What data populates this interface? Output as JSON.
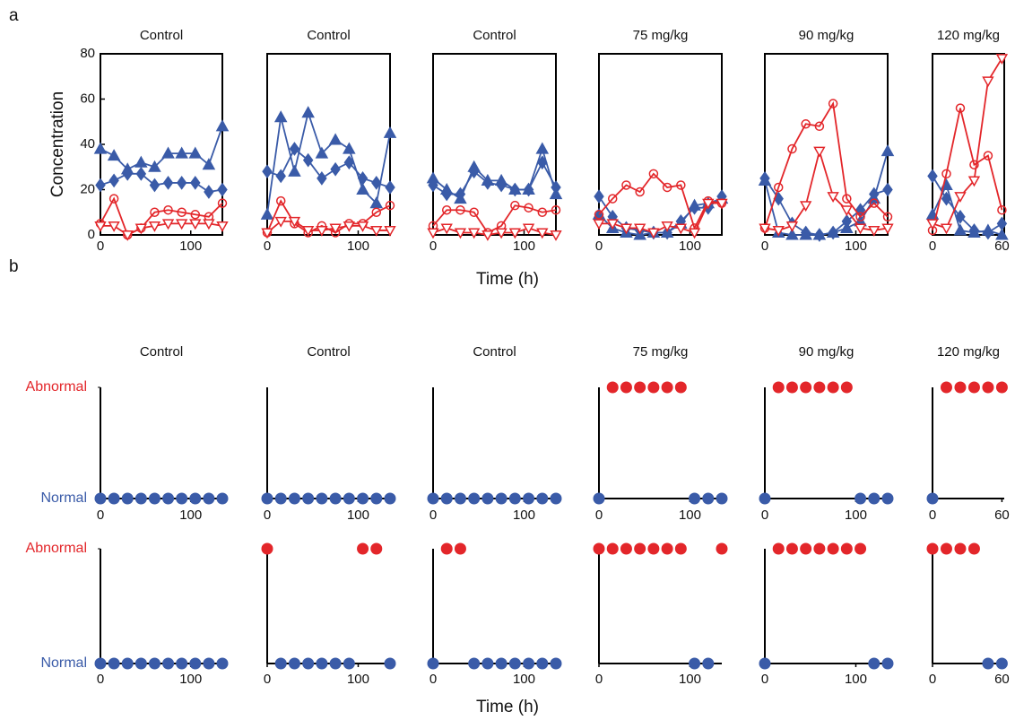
{
  "figure": {
    "panel_labels": [
      "a",
      "b"
    ],
    "ylabel": "Concentration",
    "xlabel": "Time (h)"
  },
  "chart_data": [
    {
      "type": "line",
      "title": "Control",
      "xlim": [
        0,
        135
      ],
      "xticks": [
        0,
        100
      ],
      "ylim": [
        0,
        80
      ],
      "yticks": [
        0,
        20,
        40,
        60,
        80
      ],
      "x": [
        0,
        15,
        30,
        45,
        60,
        75,
        90,
        105,
        120,
        135
      ],
      "series": [
        {
          "color": "#3a5ba8",
          "marker": "triangle",
          "values": [
            38,
            35,
            29,
            32,
            30,
            36,
            36,
            36,
            31,
            48
          ]
        },
        {
          "color": "#3a5ba8",
          "marker": "diamond",
          "values": [
            22,
            24,
            27,
            27,
            22,
            23,
            23,
            23,
            19,
            20
          ]
        },
        {
          "color": "#e3262a",
          "marker": "circle",
          "values": [
            5,
            16,
            0,
            3,
            10,
            11,
            10,
            9,
            8,
            14
          ]
        },
        {
          "color": "#e3262a",
          "marker": "triangle-down",
          "values": [
            4,
            4,
            0,
            3,
            4,
            5,
            5,
            5,
            5,
            4
          ]
        }
      ]
    },
    {
      "type": "line",
      "title": "Control",
      "xlim": [
        0,
        135
      ],
      "xticks": [
        0,
        100
      ],
      "ylim": [
        0,
        80
      ],
      "x": [
        0,
        15,
        30,
        45,
        60,
        75,
        90,
        105,
        120,
        135
      ],
      "series": [
        {
          "color": "#3a5ba8",
          "marker": "triangle",
          "values": [
            9,
            52,
            28,
            54,
            36,
            42,
            38,
            20,
            14,
            45
          ]
        },
        {
          "color": "#3a5ba8",
          "marker": "diamond",
          "values": [
            28,
            26,
            38,
            33,
            25,
            29,
            32,
            25,
            23,
            21
          ]
        },
        {
          "color": "#e3262a",
          "marker": "circle",
          "values": [
            1,
            15,
            5,
            1,
            4,
            1,
            5,
            5,
            10,
            13
          ]
        },
        {
          "color": "#e3262a",
          "marker": "triangle-down",
          "values": [
            1,
            6,
            6,
            2,
            2,
            3,
            4,
            4,
            2,
            2
          ]
        }
      ]
    },
    {
      "type": "line",
      "title": "Control",
      "xlim": [
        0,
        135
      ],
      "xticks": [
        0,
        100
      ],
      "ylim": [
        0,
        80
      ],
      "x": [
        0,
        15,
        30,
        45,
        60,
        75,
        90,
        105,
        120,
        135
      ],
      "series": [
        {
          "color": "#3a5ba8",
          "marker": "triangle",
          "values": [
            25,
            20,
            16,
            30,
            24,
            24,
            20,
            20,
            38,
            18
          ]
        },
        {
          "color": "#3a5ba8",
          "marker": "diamond",
          "values": [
            22,
            18,
            18,
            28,
            23,
            22,
            20,
            20,
            32,
            21
          ]
        },
        {
          "color": "#e3262a",
          "marker": "circle",
          "values": [
            4,
            11,
            11,
            10,
            1,
            4,
            13,
            12,
            10,
            11
          ]
        },
        {
          "color": "#e3262a",
          "marker": "triangle-down",
          "values": [
            1,
            3,
            1,
            1,
            0,
            1,
            1,
            3,
            1,
            0
          ]
        }
      ]
    },
    {
      "type": "line",
      "title": "75 mg/kg",
      "xlim": [
        0,
        135
      ],
      "xticks": [
        0,
        100
      ],
      "ylim": [
        0,
        80
      ],
      "x": [
        0,
        15,
        30,
        45,
        60,
        75,
        90,
        105,
        120,
        135
      ],
      "series": [
        {
          "color": "#3a5ba8",
          "marker": "triangle",
          "values": [
            9,
            3,
            1,
            0,
            1,
            1,
            5,
            13,
            14,
            16
          ]
        },
        {
          "color": "#3a5ba8",
          "marker": "diamond",
          "values": [
            17,
            8,
            3,
            2,
            1,
            1,
            6,
            12,
            12,
            17
          ]
        },
        {
          "color": "#e3262a",
          "marker": "circle",
          "values": [
            9,
            16,
            22,
            19,
            27,
            21,
            22,
            3,
            15,
            14
          ]
        },
        {
          "color": "#e3262a",
          "marker": "triangle-down",
          "values": [
            5,
            5,
            3,
            3,
            1,
            4,
            3,
            1,
            14,
            14
          ]
        }
      ]
    },
    {
      "type": "line",
      "title": "90 mg/kg",
      "xlim": [
        0,
        135
      ],
      "xticks": [
        0,
        100
      ],
      "ylim": [
        0,
        80
      ],
      "x": [
        0,
        15,
        30,
        45,
        60,
        75,
        90,
        105,
        120,
        135
      ],
      "series": [
        {
          "color": "#3a5ba8",
          "marker": "triangle",
          "values": [
            24,
            1,
            0,
            0,
            0,
            1,
            3,
            6,
            16,
            37
          ]
        },
        {
          "color": "#3a5ba8",
          "marker": "diamond",
          "values": [
            25,
            16,
            5,
            1,
            0,
            1,
            6,
            11,
            18,
            20
          ]
        },
        {
          "color": "#e3262a",
          "marker": "circle",
          "values": [
            3,
            21,
            38,
            49,
            48,
            58,
            16,
            8,
            14,
            8
          ]
        },
        {
          "color": "#e3262a",
          "marker": "triangle-down",
          "values": [
            3,
            2,
            4,
            13,
            37,
            17,
            11,
            3,
            2,
            3
          ]
        }
      ]
    },
    {
      "type": "line",
      "title": "120 mg/kg",
      "xlim": [
        0,
        62
      ],
      "xticks": [
        0,
        60
      ],
      "ylim": [
        0,
        80
      ],
      "x": [
        0,
        12,
        24,
        36,
        48,
        60
      ],
      "series": [
        {
          "color": "#3a5ba8",
          "marker": "triangle",
          "values": [
            9,
            22,
            2,
            1,
            2,
            0
          ]
        },
        {
          "color": "#3a5ba8",
          "marker": "diamond",
          "values": [
            26,
            16,
            8,
            2,
            1,
            5
          ]
        },
        {
          "color": "#e3262a",
          "marker": "circle",
          "values": [
            2,
            27,
            56,
            31,
            35,
            11
          ]
        },
        {
          "color": "#e3262a",
          "marker": "triangle-down",
          "values": [
            5,
            3,
            17,
            24,
            68,
            78
          ]
        }
      ]
    },
    {
      "type": "dot",
      "title": "Control",
      "xlim": [
        0,
        135
      ],
      "xticks": [
        0,
        100
      ],
      "ylim": [
        0,
        1
      ],
      "yticks": [
        {
          "value": 0,
          "label": "Normal"
        },
        {
          "value": 1,
          "label": "Abnormal"
        }
      ],
      "point_colors": [
        "#3a5ba8",
        "#e3262a"
      ],
      "x": [
        0,
        15,
        30,
        45,
        60,
        75,
        90,
        105,
        120,
        135
      ],
      "values": [
        0,
        0,
        0,
        0,
        0,
        0,
        0,
        0,
        0,
        0
      ]
    },
    {
      "type": "dot",
      "title": "Control",
      "xlim": [
        0,
        135
      ],
      "xticks": [
        0,
        100
      ],
      "ylim": [
        0,
        1
      ],
      "point_colors": [
        "#3a5ba8",
        "#e3262a"
      ],
      "x": [
        0,
        15,
        30,
        45,
        60,
        75,
        90,
        105,
        120,
        135
      ],
      "values": [
        0,
        0,
        0,
        0,
        0,
        0,
        0,
        0,
        0,
        0
      ]
    },
    {
      "type": "dot",
      "title": "Control",
      "xlim": [
        0,
        135
      ],
      "xticks": [
        0,
        100
      ],
      "ylim": [
        0,
        1
      ],
      "point_colors": [
        "#3a5ba8",
        "#e3262a"
      ],
      "x": [
        0,
        15,
        30,
        45,
        60,
        75,
        90,
        105,
        120,
        135
      ],
      "values": [
        0,
        0,
        0,
        0,
        0,
        0,
        0,
        0,
        0,
        0
      ]
    },
    {
      "type": "dot",
      "title": "75 mg/kg",
      "xlim": [
        0,
        135
      ],
      "xticks": [
        0,
        100
      ],
      "ylim": [
        0,
        1
      ],
      "point_colors": [
        "#3a5ba8",
        "#e3262a"
      ],
      "x": [
        0,
        15,
        30,
        45,
        60,
        75,
        90,
        105,
        120,
        135
      ],
      "values": [
        0,
        1,
        1,
        1,
        1,
        1,
        1,
        0,
        0,
        0
      ]
    },
    {
      "type": "dot",
      "title": "90 mg/kg",
      "xlim": [
        0,
        135
      ],
      "xticks": [
        0,
        100
      ],
      "ylim": [
        0,
        1
      ],
      "point_colors": [
        "#3a5ba8",
        "#e3262a"
      ],
      "x": [
        0,
        15,
        30,
        45,
        60,
        75,
        90,
        105,
        120,
        135
      ],
      "values": [
        0,
        1,
        1,
        1,
        1,
        1,
        1,
        0,
        0,
        0
      ]
    },
    {
      "type": "dot",
      "title": "120 mg/kg",
      "xlim": [
        0,
        62
      ],
      "xticks": [
        0,
        60
      ],
      "ylim": [
        0,
        1
      ],
      "point_colors": [
        "#3a5ba8",
        "#e3262a"
      ],
      "x": [
        0,
        12,
        24,
        36,
        48,
        60
      ],
      "values": [
        0,
        1,
        1,
        1,
        1,
        1
      ]
    },
    {
      "type": "dot",
      "xlim": [
        0,
        135
      ],
      "xticks": [
        0,
        100
      ],
      "ylim": [
        0,
        1
      ],
      "yticks": [
        {
          "value": 0,
          "label": "Normal"
        },
        {
          "value": 1,
          "label": "Abnormal"
        }
      ],
      "point_colors": [
        "#3a5ba8",
        "#e3262a"
      ],
      "x": [
        0,
        15,
        30,
        45,
        60,
        75,
        90,
        105,
        120,
        135
      ],
      "values": [
        0,
        0,
        0,
        0,
        0,
        0,
        0,
        0,
        0,
        0
      ]
    },
    {
      "type": "dot",
      "xlim": [
        0,
        135
      ],
      "xticks": [
        0,
        100
      ],
      "ylim": [
        0,
        1
      ],
      "point_colors": [
        "#3a5ba8",
        "#e3262a"
      ],
      "x": [
        0,
        15,
        30,
        45,
        60,
        75,
        90,
        105,
        120,
        135
      ],
      "values": [
        1,
        0,
        0,
        0,
        0,
        0,
        0,
        1,
        1,
        0
      ]
    },
    {
      "type": "dot",
      "xlim": [
        0,
        135
      ],
      "xticks": [
        0,
        100
      ],
      "ylim": [
        0,
        1
      ],
      "point_colors": [
        "#3a5ba8",
        "#e3262a"
      ],
      "x": [
        0,
        15,
        30,
        45,
        60,
        75,
        90,
        105,
        120,
        135
      ],
      "values": [
        0,
        1,
        1,
        0,
        0,
        0,
        0,
        0,
        0,
        0
      ]
    },
    {
      "type": "dot",
      "xlim": [
        0,
        135
      ],
      "xticks": [
        0,
        100
      ],
      "ylim": [
        0,
        1
      ],
      "point_colors": [
        "#3a5ba8",
        "#e3262a"
      ],
      "x": [
        0,
        15,
        30,
        45,
        60,
        75,
        90,
        105,
        120,
        135
      ],
      "values": [
        1,
        1,
        1,
        1,
        1,
        1,
        1,
        0,
        0,
        1
      ]
    },
    {
      "type": "dot",
      "xlim": [
        0,
        135
      ],
      "xticks": [
        0,
        100
      ],
      "ylim": [
        0,
        1
      ],
      "point_colors": [
        "#3a5ba8",
        "#e3262a"
      ],
      "x": [
        0,
        15,
        30,
        45,
        60,
        75,
        90,
        105,
        120,
        135
      ],
      "values": [
        0,
        1,
        1,
        1,
        1,
        1,
        1,
        1,
        0,
        0
      ]
    },
    {
      "type": "dot",
      "xlim": [
        0,
        62
      ],
      "xticks": [
        0,
        60
      ],
      "ylim": [
        0,
        1
      ],
      "point_colors": [
        "#3a5ba8",
        "#e3262a"
      ],
      "x": [
        0,
        12,
        24,
        36,
        48,
        60
      ],
      "values": [
        1,
        1,
        1,
        1,
        0,
        0
      ]
    }
  ]
}
